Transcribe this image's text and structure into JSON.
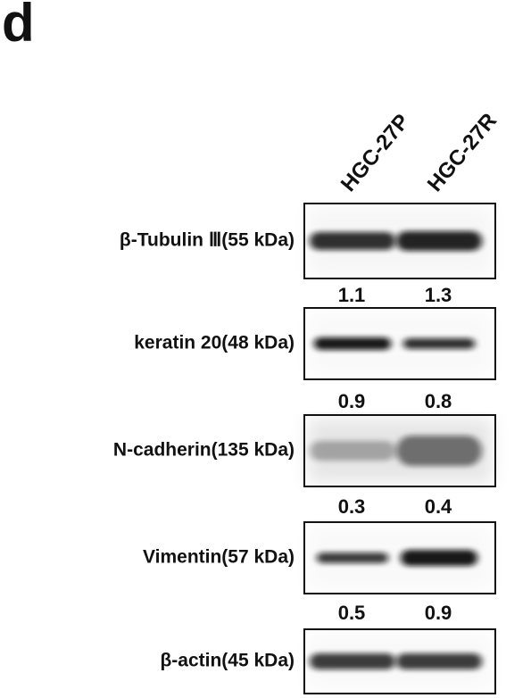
{
  "panel_label": "d",
  "lanes": [
    "HGC-27P",
    "HGC-27R"
  ],
  "blots": [
    {
      "label": "β-Tubulin Ⅲ(55 kDa)",
      "quantification": [
        "1.1",
        "1.3"
      ]
    },
    {
      "label": "keratin 20(48 kDa)",
      "quantification": [
        "0.9",
        "0.8"
      ]
    },
    {
      "label": "N-cadherin(135 kDa)",
      "quantification": [
        "0.3",
        "0.4"
      ]
    },
    {
      "label": "Vimentin(57 kDa)",
      "quantification": [
        "0.5",
        "0.9"
      ]
    },
    {
      "label": "β-actin(45 kDa)"
    }
  ]
}
